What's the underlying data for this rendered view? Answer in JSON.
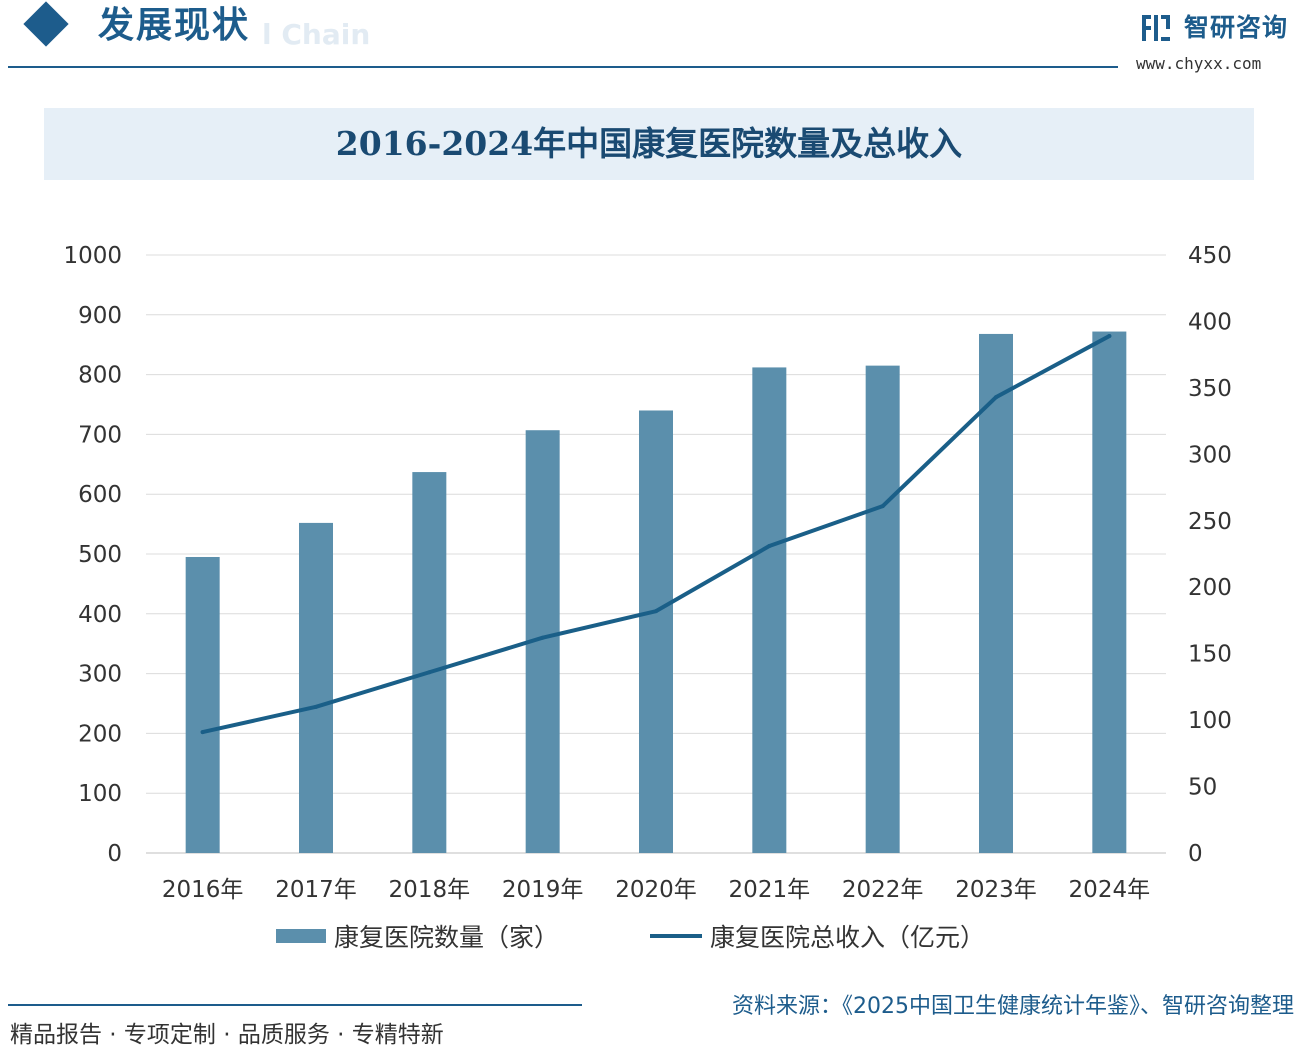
{
  "header": {
    "title": "发展现状",
    "ghost_text": "l Chain",
    "brand_name": "智研咨询",
    "brand_url": "www.chyxx.com"
  },
  "chart_data": {
    "type": "bar+line",
    "title": "2016-2024年中国康复医院数量及总收入",
    "categories": [
      "2016年",
      "2017年",
      "2018年",
      "2019年",
      "2020年",
      "2021年",
      "2022年",
      "2023年",
      "2024年"
    ],
    "series": [
      {
        "name": "康复医院数量（家）",
        "type": "bar",
        "axis": "left",
        "values": [
          495,
          552,
          637,
          707,
          740,
          812,
          815,
          868,
          872
        ],
        "color": "#5b8fac"
      },
      {
        "name": "康复医院总收入（亿元）",
        "type": "line",
        "axis": "right",
        "values": [
          91,
          110,
          136,
          162,
          182,
          231,
          261,
          343,
          389
        ],
        "color": "#1a5f88"
      }
    ],
    "y_left": {
      "ticks": [
        "0",
        "100",
        "200",
        "300",
        "400",
        "500",
        "600",
        "700",
        "800",
        "900",
        "1000"
      ],
      "min": 0,
      "max": 1000
    },
    "y_right": {
      "ticks": [
        "0",
        "50",
        "100",
        "150",
        "200",
        "250",
        "300",
        "350",
        "400",
        "450"
      ],
      "min": 0,
      "max": 450
    },
    "grid": true,
    "legend_placement": "bottom"
  },
  "footer": {
    "left_text": "精品报告 · 专项定制 · 品质服务 · 专精特新",
    "source": "资料来源：《2025中国卫生健康统计年鉴》、智研咨询整理"
  }
}
